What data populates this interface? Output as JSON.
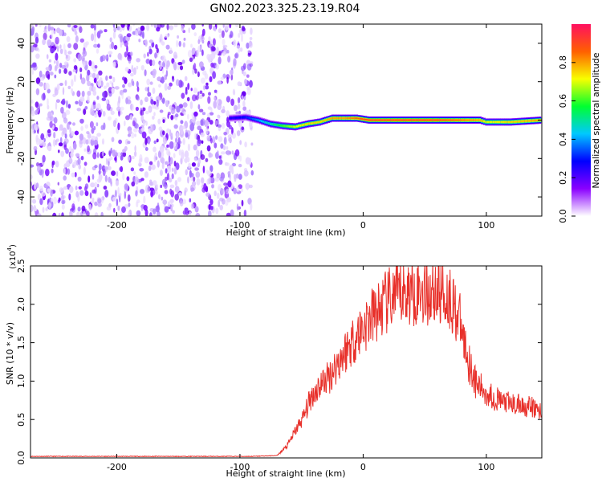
{
  "title": "GN02.2023.325.23.19.R04",
  "chart_data": [
    {
      "type": "heatmap",
      "xlabel": "Height of straight line (km)",
      "ylabel": "Frequency (Hz)",
      "xlim": [
        -270,
        145
      ],
      "ylim": [
        -50,
        50
      ],
      "xticks": [
        -200,
        -100,
        0,
        100
      ],
      "yticks": [
        -40,
        -20,
        0,
        20,
        40
      ],
      "colorbar": {
        "label": "Normalized spectral amplitude",
        "range": [
          0,
          1
        ],
        "ticks": [
          0.0,
          0.2,
          0.4,
          0.6,
          0.8
        ],
        "colormap": [
          "#ffffff",
          "#8a00ff",
          "#0000ff",
          "#00c8ff",
          "#00ff30",
          "#f8ff00",
          "#ff6000",
          "#ff1060"
        ]
      },
      "noise_region": {
        "x_range": [
          -270,
          -90
        ],
        "level": 0.1
      },
      "ridge": [
        {
          "x": -108,
          "y": 1,
          "amp": 0.25
        },
        {
          "x": -95,
          "y": 1.5,
          "amp": 0.3
        },
        {
          "x": -85,
          "y": 0,
          "amp": 0.4
        },
        {
          "x": -75,
          "y": -2,
          "amp": 0.5
        },
        {
          "x": -65,
          "y": -3,
          "amp": 0.6
        },
        {
          "x": -55,
          "y": -3.5,
          "amp": 0.7
        },
        {
          "x": -45,
          "y": -2,
          "amp": 0.75
        },
        {
          "x": -35,
          "y": -1,
          "amp": 0.75
        },
        {
          "x": -25,
          "y": 1,
          "amp": 0.8
        },
        {
          "x": -15,
          "y": 1,
          "amp": 0.8
        },
        {
          "x": -5,
          "y": 1,
          "amp": 0.85
        },
        {
          "x": 5,
          "y": 0,
          "amp": 0.9
        },
        {
          "x": 20,
          "y": 0,
          "amp": 0.9
        },
        {
          "x": 40,
          "y": 0,
          "amp": 0.9
        },
        {
          "x": 60,
          "y": 0,
          "amp": 0.9
        },
        {
          "x": 80,
          "y": 0,
          "amp": 0.85
        },
        {
          "x": 95,
          "y": 0,
          "amp": 0.8
        },
        {
          "x": 100,
          "y": -1,
          "amp": 0.7
        },
        {
          "x": 120,
          "y": -1,
          "amp": 0.75
        },
        {
          "x": 145,
          "y": 0,
          "amp": 0.8
        }
      ]
    },
    {
      "type": "line",
      "xlabel": "Height of straight line (km)",
      "ylabel": "SNR (10 * v/v)",
      "yunit": "(x10",
      "yunit_exp": "4",
      "xlim": [
        -270,
        145
      ],
      "ylim": [
        0,
        2.5
      ],
      "xticks": [
        -200,
        -100,
        0,
        100
      ],
      "yticks": [
        0.0,
        0.5,
        1.0,
        1.5,
        2.0,
        2.5
      ],
      "color": "#e8302a",
      "series": [
        {
          "x": [
            -270,
            -240,
            -200,
            -160,
            -120,
            -90,
            -70,
            -62,
            -55,
            -48,
            -42,
            -35,
            -28,
            -20,
            -12,
            -5,
            5,
            15,
            25,
            35,
            45,
            55,
            60,
            65,
            72,
            78,
            85,
            92,
            100,
            110,
            120,
            130,
            138,
            145
          ],
          "values": [
            0.02,
            0.02,
            0.02,
            0.02,
            0.02,
            0.02,
            0.03,
            0.15,
            0.35,
            0.55,
            0.8,
            0.95,
            1.05,
            1.25,
            1.45,
            1.6,
            1.8,
            1.95,
            2.1,
            2.15,
            2.2,
            2.15,
            2.2,
            2.15,
            2.05,
            1.8,
            1.3,
            0.95,
            0.85,
            0.75,
            0.7,
            0.68,
            0.65,
            0.6
          ]
        }
      ]
    }
  ]
}
